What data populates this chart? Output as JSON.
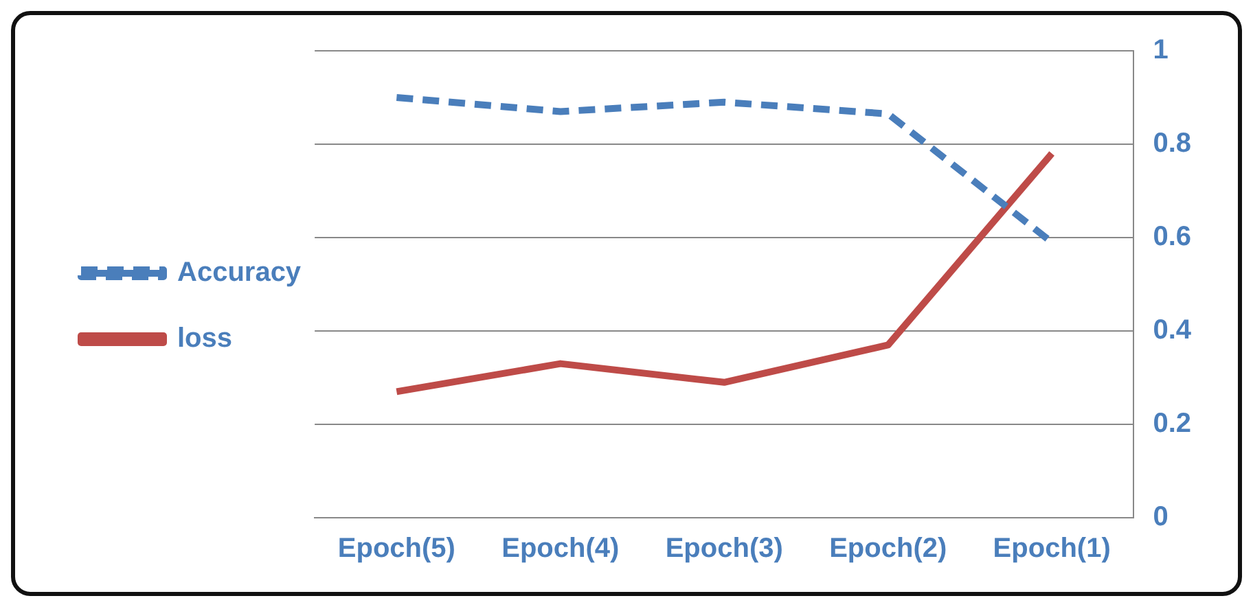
{
  "chart_data": {
    "type": "line",
    "categories": [
      "Epoch(5)",
      "Epoch(4)",
      "Epoch(3)",
      "Epoch(2)",
      "Epoch(1)"
    ],
    "series": [
      {
        "name": "Accuracy",
        "color": "#4a7ebb",
        "values": [
          0.9,
          0.87,
          0.89,
          0.865,
          0.59
        ],
        "line_style": "dashed"
      },
      {
        "name": "loss",
        "color": "#be4b48",
        "values": [
          0.27,
          0.33,
          0.29,
          0.37,
          0.78
        ],
        "line_style": "solid"
      }
    ],
    "ylim": [
      0,
      1
    ],
    "yticks": [
      0,
      0.2,
      0.4,
      0.6,
      0.8,
      1
    ],
    "grid": "y",
    "legend": "left",
    "marker": "none"
  }
}
